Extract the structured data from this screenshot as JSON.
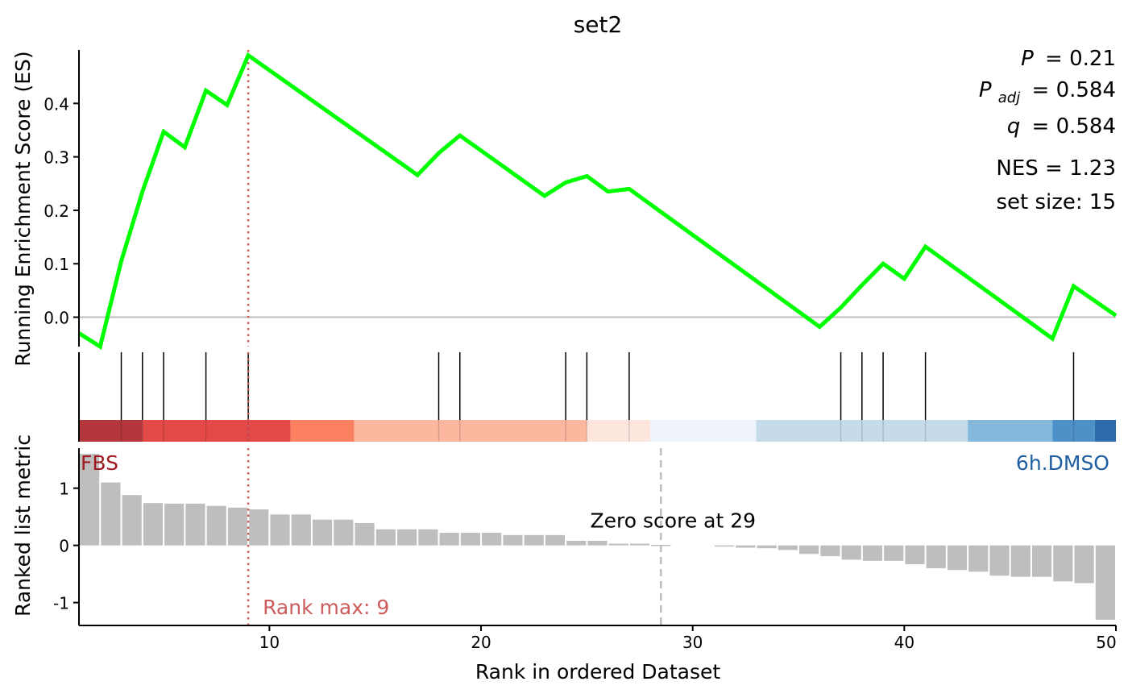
{
  "chart_data": {
    "type": "line",
    "title": "set2",
    "stats": {
      "p_label": "P",
      "p_value": "= 0.21",
      "padj_label": "P",
      "padj_sub": "adj",
      "padj_value": "= 0.584",
      "q_label": "q",
      "q_value": "= 0.584",
      "nes_text": "NES = 1.23",
      "setsize_text": "set size: 15"
    },
    "es_panel": {
      "ylabel": "Running Enrichment Score (ES)",
      "ylim": [
        -0.055,
        0.5
      ],
      "yticks": [
        0.0,
        0.1,
        0.2,
        0.3,
        0.4
      ],
      "ytick_labels": [
        "0.0",
        "0.1",
        "0.2",
        "0.3",
        "0.4"
      ],
      "series": [
        {
          "x": [
            1,
            2,
            3,
            4,
            5,
            6,
            7,
            8,
            9,
            17,
            18,
            19,
            23,
            24,
            25,
            26,
            27,
            36,
            37,
            38,
            39,
            40,
            41,
            47,
            48,
            50
          ],
          "y": [
            -0.03,
            -0.055,
            0.105,
            0.235,
            0.347,
            0.318,
            0.424,
            0.397,
            0.49,
            0.266,
            0.307,
            0.34,
            0.227,
            0.252,
            0.264,
            0.235,
            0.24,
            -0.018,
            0.018,
            0.06,
            0.1,
            0.072,
            0.132,
            -0.04,
            0.058,
            0.003
          ],
          "color": "#00ff00"
        }
      ],
      "max_rank": 9,
      "max_color": "#cd5c5c"
    },
    "hits": [
      3,
      4,
      5,
      7,
      9,
      18,
      19,
      24,
      25,
      27,
      37,
      38,
      39,
      41,
      48
    ],
    "color_bar": [
      {
        "from": 1,
        "to": 4,
        "color": "#b2363a"
      },
      {
        "from": 4,
        "to": 11,
        "color": "#e34a47"
      },
      {
        "from": 11,
        "to": 14,
        "color": "#fc8163"
      },
      {
        "from": 14,
        "to": 25,
        "color": "#fbb89e"
      },
      {
        "from": 25,
        "to": 28,
        "color": "#fde6de"
      },
      {
        "from": 28,
        "to": 33,
        "color": "#eff3fc"
      },
      {
        "from": 33,
        "to": 43,
        "color": "#c6dbea"
      },
      {
        "from": 43,
        "to": 47,
        "color": "#83b8da"
      },
      {
        "from": 47,
        "to": 49,
        "color": "#4e91c8"
      },
      {
        "from": 49,
        "to": 50,
        "color": "#2c6cad"
      }
    ],
    "metric_panel": {
      "ylabel": "Ranked list metric",
      "ylim": [
        -1.4,
        1.7
      ],
      "yticks": [
        1,
        0,
        -1
      ],
      "ytick_labels": [
        "1",
        "0",
        "-1"
      ],
      "bars": [
        1.6,
        1.1,
        0.88,
        0.74,
        0.73,
        0.73,
        0.69,
        0.66,
        0.63,
        0.54,
        0.54,
        0.45,
        0.45,
        0.39,
        0.28,
        0.28,
        0.28,
        0.22,
        0.22,
        0.22,
        0.18,
        0.18,
        0.18,
        0.08,
        0.08,
        0.03,
        0.03,
        0.01,
        0,
        0,
        -0.02,
        -0.04,
        -0.05,
        -0.08,
        -0.15,
        -0.19,
        -0.25,
        -0.27,
        -0.27,
        -0.33,
        -0.4,
        -0.43,
        -0.46,
        -0.53,
        -0.55,
        -0.55,
        -0.63,
        -0.66,
        -1.3
      ],
      "bar_color": "#bebebe",
      "zero_cross": 28.5,
      "zero_label": "Zero score at 29",
      "rank_max_label": "Rank max: 9",
      "pos_label": "FBS",
      "pos_color": "#9e1a1e",
      "neg_label": "6h.DMSO",
      "neg_color": "#1f5ea3"
    },
    "xlabel": "Rank in ordered Dataset",
    "xlim": [
      1,
      50
    ],
    "xticks": [
      10,
      20,
      30,
      40,
      50
    ],
    "xtick_labels": [
      "10",
      "20",
      "30",
      "40",
      "50"
    ]
  }
}
